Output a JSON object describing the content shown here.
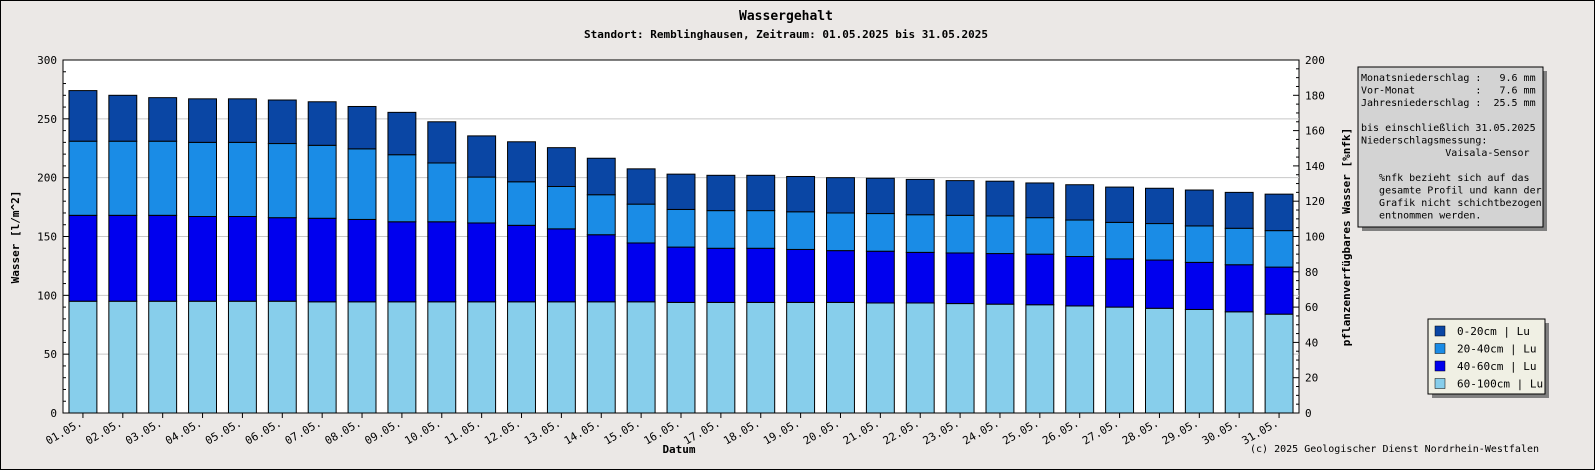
{
  "chart_data": {
    "type": "bar",
    "stacked": true,
    "title": "Wassergehalt",
    "subtitle": "Standort: Remblinghausen, Zeitraum: 01.05.2025 bis 31.05.2025",
    "xlabel": "Datum",
    "ylabel": "Wasser [l/m^2]",
    "y2label": "pflanzenverfügbares Wasser [%nfk]",
    "ylim": [
      0,
      300
    ],
    "y2lim": [
      0,
      200
    ],
    "yticks": [
      "0",
      "50",
      "100",
      "150",
      "200",
      "250",
      "300"
    ],
    "y2ticks": [
      "0",
      "20",
      "40",
      "60",
      "80",
      "100",
      "120",
      "140",
      "160",
      "180",
      "200"
    ],
    "grid": true,
    "legend_position": "bottom-right",
    "categories": [
      "01.05.",
      "02.05.",
      "03.05.",
      "04.05.",
      "05.05.",
      "06.05.",
      "07.05.",
      "08.05.",
      "09.05.",
      "10.05.",
      "11.05.",
      "12.05.",
      "13.05.",
      "14.05.",
      "15.05.",
      "16.05.",
      "17.05.",
      "18.05.",
      "19.05.",
      "20.05.",
      "21.05.",
      "22.05.",
      "23.05.",
      "24.05.",
      "25.05.",
      "26.05.",
      "27.05.",
      "28.05.",
      "29.05.",
      "30.05.",
      "31.05."
    ],
    "series": [
      {
        "name": "60-100cm | Lu",
        "color": "#87ceeb",
        "values": [
          95,
          95,
          95,
          95,
          95,
          95,
          94.5,
          94.5,
          94.5,
          94.5,
          94.5,
          94.5,
          94.5,
          94.5,
          94.5,
          94,
          94,
          94,
          94,
          94,
          93.5,
          93.5,
          93,
          92.5,
          92,
          91,
          90,
          89,
          88,
          86,
          84
        ]
      },
      {
        "name": "40-60cm | Lu",
        "color": "#0000ee",
        "values": [
          73,
          73,
          73,
          72,
          72,
          71,
          71,
          70,
          68,
          68,
          67,
          65,
          62,
          57,
          50,
          47,
          46,
          46,
          45,
          44,
          44,
          43,
          43,
          43,
          43,
          42,
          41,
          41,
          40,
          40,
          40
        ]
      },
      {
        "name": "20-40cm | Lu",
        "color": "#1a8ce6",
        "values": [
          63,
          63,
          63,
          63,
          63,
          63,
          62,
          60,
          57,
          50,
          39,
          37,
          36,
          34,
          33,
          32,
          32,
          32,
          32,
          32,
          32,
          32,
          32,
          32,
          31,
          31,
          31,
          31,
          31,
          31,
          31
        ]
      },
      {
        "name": "0-20cm | Lu",
        "color": "#0a46a4",
        "values": [
          43,
          39,
          37,
          37,
          37,
          37,
          37,
          36,
          36,
          35,
          35,
          34,
          33,
          31,
          30,
          30,
          30,
          30,
          30,
          30,
          30,
          30,
          29.5,
          29.5,
          29.5,
          30,
          30,
          30,
          30.5,
          30.5,
          31
        ]
      }
    ]
  },
  "info_box": {
    "lines": [
      "Monatsniederschlag :   9.6 mm",
      "Vor-Monat          :   7.6 mm",
      "Jahresniederschlag :  25.5 mm",
      "",
      "bis einschließlich 31.05.2025",
      "Niederschlagsmessung:",
      "              Vaisala-Sensor",
      "",
      "   %nfk bezieht sich auf das",
      "   gesamte Profil und kann der",
      "   Grafik nicht schichtbezogen",
      "   entnommen werden."
    ]
  },
  "legend": {
    "items": [
      {
        "label": "0-20cm | Lu",
        "color": "#0a46a4"
      },
      {
        "label": "20-40cm | Lu",
        "color": "#1a8ce6"
      },
      {
        "label": "40-60cm | Lu",
        "color": "#0000ee"
      },
      {
        "label": "60-100cm | Lu",
        "color": "#87ceeb"
      }
    ]
  },
  "copyright": "(c) 2025 Geologischer Dienst Nordrhein-Westfalen"
}
